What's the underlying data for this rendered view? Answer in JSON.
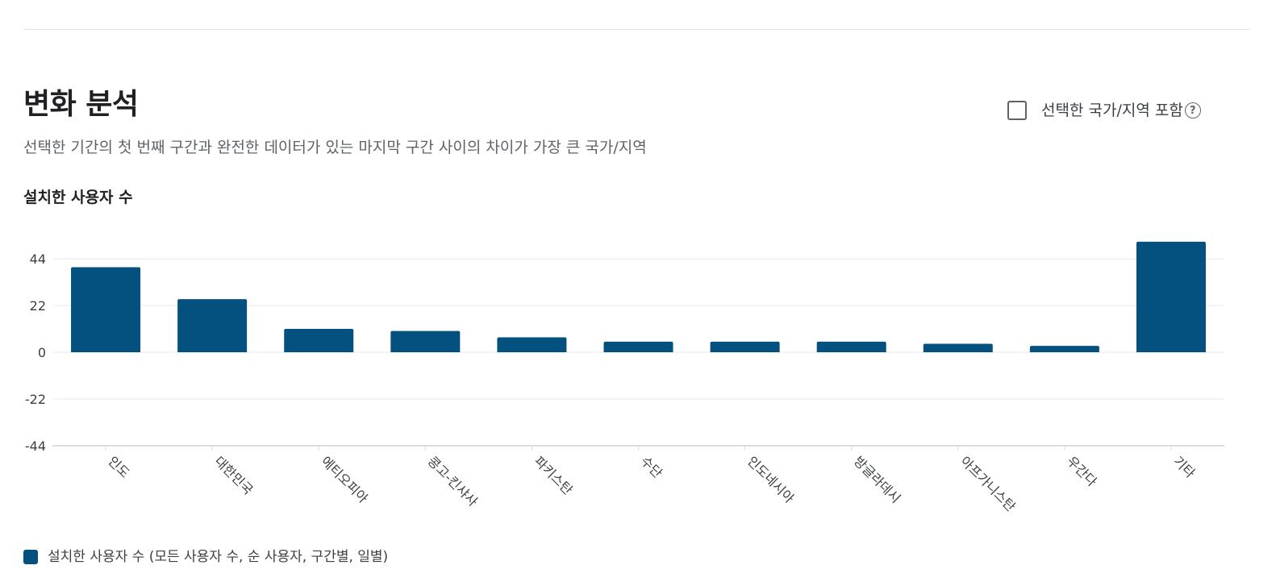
{
  "header": {
    "title": "변화 분석",
    "subtitle": "선택한 기간의 첫 번째 구간과 완전한 데이터가 있는 마지막 구간 사이의 차이가 가장 큰 국가/지역",
    "include_label": "선택한 국가/지역 포함",
    "help_glyph": "?",
    "help_icon": "question-circle-icon"
  },
  "metric_title": "설치한 사용자 수",
  "colors": {
    "bar": "#04517f",
    "grid": "#e8eaed",
    "axis_text": "#3c4043"
  },
  "chart_data": {
    "type": "bar",
    "categories": [
      "인도",
      "대한민국",
      "에티오피아",
      "콩고-킨샤사",
      "파키스탄",
      "수단",
      "인도네시아",
      "방글라데시",
      "아프가니스탄",
      "우간다",
      "기타"
    ],
    "series": [
      {
        "name": "설치한 사용자 수 (모든 사용자 수, 순 사용자, 구간별, 일별)",
        "values": [
          40,
          25,
          11,
          10,
          7,
          5,
          5,
          5,
          4,
          3,
          52
        ]
      }
    ],
    "yticks": [
      44,
      22,
      0,
      -22,
      -44
    ],
    "ylim": [
      -44,
      44
    ],
    "grid": true,
    "legend": "bottom-left"
  }
}
